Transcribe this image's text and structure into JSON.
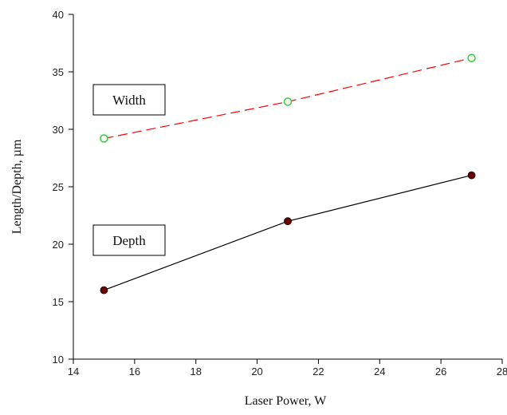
{
  "chart_data": {
    "type": "line",
    "xlabel": "Laser Power, W",
    "ylabel": "Length/Depth, µm",
    "xlim": [
      14,
      28
    ],
    "ylim": [
      10,
      40
    ],
    "x_ticks": [
      14,
      16,
      18,
      20,
      22,
      24,
      26,
      28
    ],
    "y_ticks": [
      10,
      15,
      20,
      25,
      30,
      35,
      40
    ],
    "grid": false,
    "series": [
      {
        "name": "Width",
        "x": [
          15,
          21,
          27
        ],
        "y": [
          29.2,
          32.4,
          36.2
        ],
        "line_color": "#ff0000",
        "line_style": "dashed",
        "marker": "open-circle",
        "marker_color": "#33cc33"
      },
      {
        "name": "Depth",
        "x": [
          15,
          21,
          27
        ],
        "y": [
          16,
          22,
          26
        ],
        "line_color": "#000000",
        "line_style": "solid",
        "marker": "filled-circle",
        "marker_color": "#6b0000"
      }
    ]
  }
}
